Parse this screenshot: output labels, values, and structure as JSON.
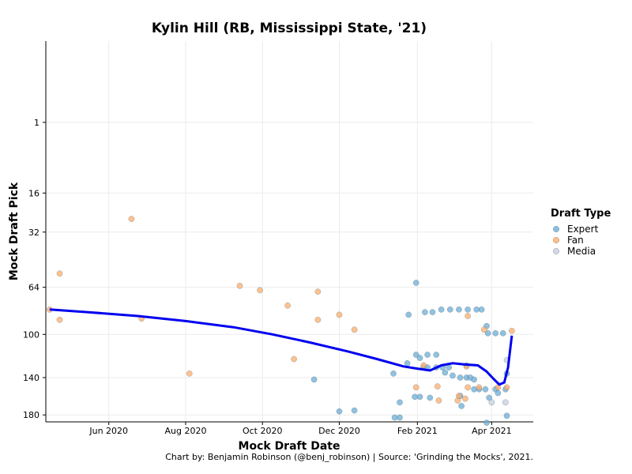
{
  "chart_data": {
    "type": "scatter",
    "title": "Kylin Hill (RB, Mississippi State, '21)",
    "xlabel": "Mock Draft Date",
    "ylabel": "Mock Draft Pick",
    "caption": "Chart by: Benjamin Robinson (@benj_robinson) | Source: 'Grinding the Mocks', 2021.",
    "x_range": [
      "2020-04-12",
      "2021-05-04"
    ],
    "y_range": [
      188,
      -6
    ],
    "y_scale": "reversed-sqrt",
    "y_ticks": [
      1,
      16,
      32,
      64,
      100,
      140,
      180
    ],
    "x_ticks": [
      {
        "date": "2020-06-01",
        "label": "Jun 2020"
      },
      {
        "date": "2020-08-01",
        "label": "Aug 2020"
      },
      {
        "date": "2020-10-01",
        "label": "Oct 2020"
      },
      {
        "date": "2020-12-01",
        "label": "Dec 2020"
      },
      {
        "date": "2021-02-01",
        "label": "Feb 2021"
      },
      {
        "date": "2021-04-01",
        "label": "Apr 2021"
      }
    ],
    "grid": true,
    "legend": {
      "title": "Draft Type",
      "position": "right"
    },
    "series": [
      {
        "name": "Expert",
        "color": "#6BAED6",
        "points": [
          {
            "x": "2021-01-25",
            "y": 84
          },
          {
            "x": "2021-01-31",
            "y": 61
          },
          {
            "x": "2021-02-07",
            "y": 82
          },
          {
            "x": "2021-02-13",
            "y": 82
          },
          {
            "x": "2021-02-20",
            "y": 80
          },
          {
            "x": "2021-02-27",
            "y": 80
          },
          {
            "x": "2021-03-06",
            "y": 80
          },
          {
            "x": "2021-03-13",
            "y": 80
          },
          {
            "x": "2021-03-20",
            "y": 80
          },
          {
            "x": "2021-03-24",
            "y": 80
          },
          {
            "x": "2021-03-28",
            "y": 93
          },
          {
            "x": "2021-03-29",
            "y": 99
          },
          {
            "x": "2021-04-04",
            "y": 99
          },
          {
            "x": "2021-04-10",
            "y": 99
          },
          {
            "x": "2021-01-31",
            "y": 118
          },
          {
            "x": "2021-02-03",
            "y": 121
          },
          {
            "x": "2021-02-09",
            "y": 118
          },
          {
            "x": "2021-02-16",
            "y": 118
          },
          {
            "x": "2021-02-06",
            "y": 130
          },
          {
            "x": "2021-02-09",
            "y": 130
          },
          {
            "x": "2021-02-16",
            "y": 130
          },
          {
            "x": "2021-02-21",
            "y": 130
          },
          {
            "x": "2021-02-26",
            "y": 130
          },
          {
            "x": "2021-02-23",
            "y": 135
          },
          {
            "x": "2021-02-29",
            "y": 138
          },
          {
            "x": "2021-03-07",
            "y": 140
          },
          {
            "x": "2021-03-12",
            "y": 128
          },
          {
            "x": "2021-03-12",
            "y": 140
          },
          {
            "x": "2021-03-15",
            "y": 140
          },
          {
            "x": "2021-03-18",
            "y": 142
          },
          {
            "x": "2021-03-18",
            "y": 152
          },
          {
            "x": "2021-03-22",
            "y": 152
          },
          {
            "x": "2021-03-27",
            "y": 152
          },
          {
            "x": "2021-04-04",
            "y": 152
          },
          {
            "x": "2021-04-12",
            "y": 152
          },
          {
            "x": "2021-04-06",
            "y": 156
          },
          {
            "x": "2021-03-30",
            "y": 161
          },
          {
            "x": "2021-03-07",
            "y": 159
          },
          {
            "x": "2021-01-30",
            "y": 160
          },
          {
            "x": "2021-02-03",
            "y": 160
          },
          {
            "x": "2021-02-11",
            "y": 161
          },
          {
            "x": "2021-03-08",
            "y": 170
          },
          {
            "x": "2021-01-24",
            "y": 126
          },
          {
            "x": "2021-01-13",
            "y": 136
          },
          {
            "x": "2020-11-11",
            "y": 142
          },
          {
            "x": "2021-01-18",
            "y": 166
          },
          {
            "x": "2020-12-01",
            "y": 176
          },
          {
            "x": "2020-12-13",
            "y": 175
          },
          {
            "x": "2021-01-14",
            "y": 183
          },
          {
            "x": "2021-01-18",
            "y": 183
          },
          {
            "x": "2021-04-13",
            "y": 181
          },
          {
            "x": "2021-04-13",
            "y": 136
          },
          {
            "x": "2021-03-28",
            "y": 189
          }
        ]
      },
      {
        "name": "Fan",
        "color": "#FDAE6B",
        "points": [
          {
            "x": "2020-04-15",
            "y": 80
          },
          {
            "x": "2020-04-23",
            "y": 88
          },
          {
            "x": "2020-04-23",
            "y": 55
          },
          {
            "x": "2020-06-19",
            "y": 26
          },
          {
            "x": "2020-06-27",
            "y": 87
          },
          {
            "x": "2020-08-04",
            "y": 136
          },
          {
            "x": "2020-09-13",
            "y": 63
          },
          {
            "x": "2020-09-29",
            "y": 66
          },
          {
            "x": "2020-10-21",
            "y": 77
          },
          {
            "x": "2020-10-26",
            "y": 122
          },
          {
            "x": "2020-11-14",
            "y": 67
          },
          {
            "x": "2020-11-14",
            "y": 88
          },
          {
            "x": "2020-12-01",
            "y": 84
          },
          {
            "x": "2020-12-13",
            "y": 96
          },
          {
            "x": "2021-02-06",
            "y": 128
          },
          {
            "x": "2021-01-31",
            "y": 150
          },
          {
            "x": "2021-02-17",
            "y": 149
          },
          {
            "x": "2021-02-18",
            "y": 164
          },
          {
            "x": "2021-03-05",
            "y": 164
          },
          {
            "x": "2021-03-06",
            "y": 159
          },
          {
            "x": "2021-03-11",
            "y": 162
          },
          {
            "x": "2021-03-13",
            "y": 85
          },
          {
            "x": "2021-03-12",
            "y": 129
          },
          {
            "x": "2021-03-13",
            "y": 150
          },
          {
            "x": "2021-03-22",
            "y": 150
          },
          {
            "x": "2021-03-26",
            "y": 96
          },
          {
            "x": "2021-04-06",
            "y": 150
          },
          {
            "x": "2021-04-13",
            "y": 150
          },
          {
            "x": "2021-04-17",
            "y": 97
          }
        ]
      },
      {
        "name": "Media",
        "color": "#C6D0DE",
        "points": [
          {
            "x": "2021-04-01",
            "y": 166
          },
          {
            "x": "2021-04-12",
            "y": 166
          },
          {
            "x": "2021-04-13",
            "y": 123
          }
        ]
      }
    ],
    "trend": {
      "color": "#0000EE",
      "points": [
        {
          "x": "2020-04-15",
          "y": 80
        },
        {
          "x": "2020-05-15",
          "y": 82
        },
        {
          "x": "2020-06-24",
          "y": 85
        },
        {
          "x": "2020-08-01",
          "y": 89
        },
        {
          "x": "2020-09-08",
          "y": 94
        },
        {
          "x": "2020-10-09",
          "y": 100
        },
        {
          "x": "2020-11-08",
          "y": 107
        },
        {
          "x": "2020-12-08",
          "y": 115
        },
        {
          "x": "2020-12-31",
          "y": 122
        },
        {
          "x": "2021-01-21",
          "y": 129
        },
        {
          "x": "2021-01-31",
          "y": 131
        },
        {
          "x": "2021-02-11",
          "y": 133
        },
        {
          "x": "2021-02-20",
          "y": 128
        },
        {
          "x": "2021-03-01",
          "y": 126
        },
        {
          "x": "2021-03-10",
          "y": 127
        },
        {
          "x": "2021-03-21",
          "y": 128
        },
        {
          "x": "2021-03-28",
          "y": 134
        },
        {
          "x": "2021-04-03",
          "y": 142
        },
        {
          "x": "2021-04-07",
          "y": 147
        },
        {
          "x": "2021-04-11",
          "y": 145
        },
        {
          "x": "2021-04-14",
          "y": 130
        },
        {
          "x": "2021-04-17",
          "y": 101
        }
      ]
    }
  }
}
